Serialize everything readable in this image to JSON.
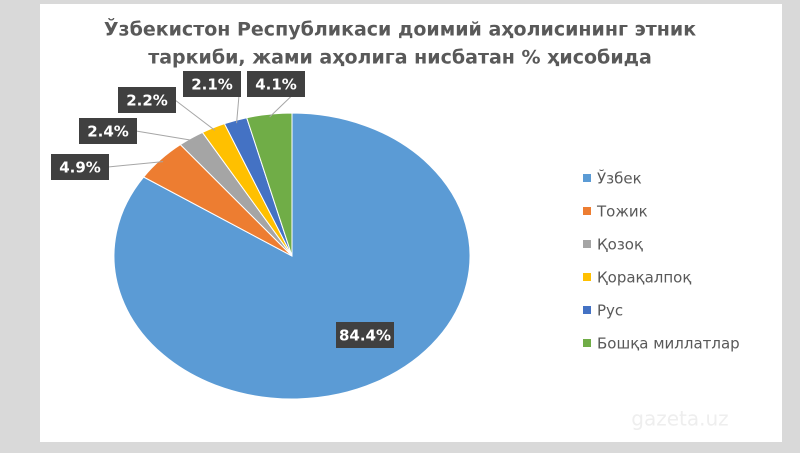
{
  "chart_data": {
    "type": "pie",
    "title": [
      "Ўзбекистон Республикаси доимий аҳолисининг этник",
      "таркиби, жами аҳолига нисбатан % ҳисобида"
    ],
    "categories": [
      "Ўзбек",
      "Тожик",
      "Қозоқ",
      "Қорақалпоқ",
      "Рус",
      "Бошқа миллатлар"
    ],
    "values": [
      84.4,
      4.9,
      2.4,
      2.2,
      2.1,
      4.1
    ],
    "value_labels": [
      "84.4%",
      "4.9%",
      "2.4%",
      "2.2%",
      "2.1%",
      "4.1%"
    ],
    "colors": [
      "#5b9bd5",
      "#ed7d31",
      "#a5a5a5",
      "#ffc000",
      "#4472c4",
      "#70ad47"
    ],
    "legend": "right",
    "watermark": "gazeta.uz"
  }
}
